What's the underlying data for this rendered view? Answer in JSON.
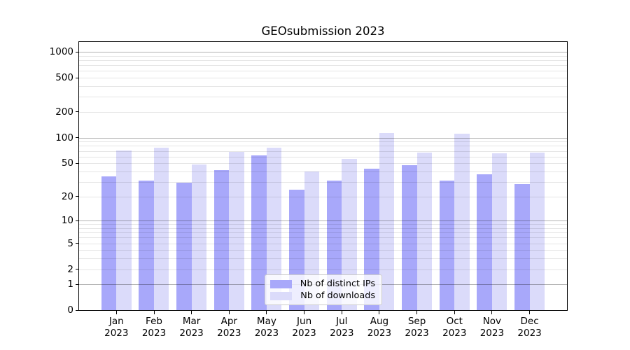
{
  "chart_data": {
    "type": "bar",
    "title": "GEOsubmission 2023",
    "months": [
      "Jan",
      "Feb",
      "Mar",
      "Apr",
      "May",
      "Jun",
      "Jul",
      "Aug",
      "Sep",
      "Oct",
      "Nov",
      "Dec"
    ],
    "year": "2023",
    "categories": [
      "Jan 2023",
      "Feb 2023",
      "Mar 2023",
      "Apr 2023",
      "May 2023",
      "Jun 2023",
      "Jul 2023",
      "Aug 2023",
      "Sep 2023",
      "Oct 2023",
      "Nov 2023",
      "Dec 2023"
    ],
    "series": [
      {
        "name": "Nb of distinct IPs",
        "color": "#a8a8fa",
        "values": [
          35,
          31,
          29,
          41,
          62,
          24,
          31,
          43,
          47,
          31,
          37,
          28
        ]
      },
      {
        "name": "Nb of downloads",
        "color": "#dbdbfa",
        "values": [
          70,
          76,
          48,
          68,
          76,
          40,
          56,
          113,
          66,
          110,
          65,
          66
        ]
      }
    ],
    "y_axis": {
      "scale": "log1p",
      "ticks": [
        0,
        1,
        2,
        5,
        10,
        20,
        50,
        100,
        200,
        500,
        1000
      ],
      "grid_major": [
        1,
        10,
        100,
        1000
      ],
      "ylim": [
        0,
        1300
      ]
    },
    "legend_position": "lower center",
    "grid": true,
    "background": "#ffffff"
  }
}
